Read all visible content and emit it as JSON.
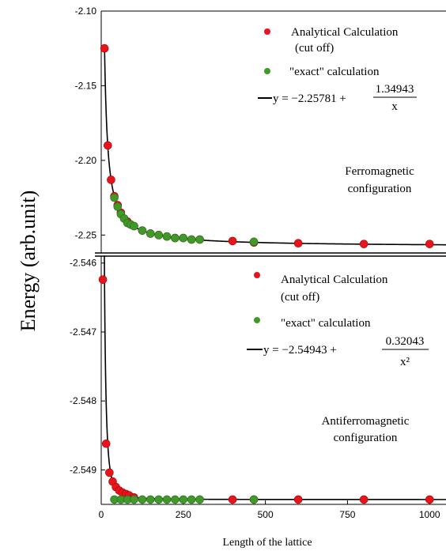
{
  "y_label": "Energy (arb.unit)",
  "x_label": "Length of the lattice",
  "colors": {
    "analytical": "#e8141c",
    "exact": "#3f9a2a",
    "fit": "#000000"
  },
  "chart_data": [
    {
      "type": "scatter",
      "panel": "top",
      "xlim": [
        0,
        1050
      ],
      "ylim": [
        -2.262,
        -2.1
      ],
      "y_ticks": [
        "-2.10",
        "-2.15",
        "-2.20",
        "-2.25"
      ],
      "y_tick_values": [
        -2.1,
        -2.15,
        -2.2,
        -2.25
      ],
      "legend": {
        "analytical_line1": "Analytical Calculation",
        "analytical_line2": "(cut off)",
        "exact": "\"exact\" calculation",
        "fit_lhs": "y = −2.25781 +",
        "fit_num": "1.34943",
        "fit_den": "x"
      },
      "note_line1": "Ferromagnetic",
      "note_line2": "configuration",
      "fit": {
        "a": -2.25781,
        "b": 1.34943,
        "power": 1,
        "x_from": 10,
        "x_to": 1050
      },
      "series": [
        {
          "name": "Analytical Calculation (cut off)",
          "points": [
            [
              10,
              -2.125
            ],
            [
              20,
              -2.19
            ],
            [
              30,
              -2.213
            ],
            [
              40,
              -2.224
            ],
            [
              50,
              -2.23
            ],
            [
              60,
              -2.235
            ],
            [
              70,
              -2.239
            ],
            [
              80,
              -2.241
            ],
            [
              90,
              -2.243
            ],
            [
              100,
              -2.244
            ],
            [
              125,
              -2.247
            ],
            [
              150,
              -2.249
            ],
            [
              175,
              -2.25
            ],
            [
              200,
              -2.251
            ],
            [
              225,
              -2.252
            ],
            [
              250,
              -2.252
            ],
            [
              275,
              -2.253
            ],
            [
              300,
              -2.253
            ],
            [
              400,
              -2.254
            ],
            [
              465,
              -2.255
            ],
            [
              600,
              -2.2555
            ],
            [
              800,
              -2.256
            ],
            [
              1000,
              -2.256
            ]
          ]
        },
        {
          "name": "\"exact\" calculation",
          "points": [
            [
              40,
              -2.225
            ],
            [
              50,
              -2.231
            ],
            [
              60,
              -2.236
            ],
            [
              70,
              -2.239
            ],
            [
              80,
              -2.242
            ],
            [
              90,
              -2.243
            ],
            [
              100,
              -2.244
            ],
            [
              125,
              -2.247
            ],
            [
              150,
              -2.249
            ],
            [
              175,
              -2.25
            ],
            [
              200,
              -2.251
            ],
            [
              225,
              -2.252
            ],
            [
              250,
              -2.252
            ],
            [
              275,
              -2.253
            ],
            [
              300,
              -2.253
            ],
            [
              465,
              -2.2545
            ]
          ]
        }
      ]
    },
    {
      "type": "scatter",
      "panel": "bottom",
      "xlim": [
        0,
        1050
      ],
      "ylim": [
        -2.5495,
        -2.5459
      ],
      "y_ticks": [
        "-2.546",
        "-2.547",
        "-2.548",
        "-2.549"
      ],
      "y_tick_values": [
        -2.546,
        -2.547,
        -2.548,
        -2.549
      ],
      "x_ticks": [
        "0",
        "250",
        "500",
        "750",
        "1000"
      ],
      "x_tick_values": [
        0,
        250,
        500,
        750,
        1000
      ],
      "legend": {
        "analytical_line1": "Analytical Calculation",
        "analytical_line2": "(cut off)",
        "exact": "\"exact\" calculation",
        "fit_lhs": "y = −2.54943  +",
        "fit_num": "0.32043",
        "fit_den": "x²"
      },
      "note_line1": "Antiferromagnetic",
      "note_line2": "configuration",
      "fit": {
        "a": -2.54943,
        "b": 0.32043,
        "power": 2,
        "x_from": 8,
        "x_to": 1050
      },
      "series": [
        {
          "name": "Analytical Calculation (cut off)",
          "points": [
            [
              5,
              -2.54624
            ],
            [
              15,
              -2.54862
            ],
            [
              25,
              -2.54904
            ],
            [
              35,
              -2.54917
            ],
            [
              45,
              -2.54925
            ],
            [
              55,
              -2.5493
            ],
            [
              65,
              -2.54933
            ],
            [
              75,
              -2.54935
            ],
            [
              85,
              -2.54937
            ],
            [
              100,
              -2.5494
            ],
            [
              400,
              -2.54943
            ],
            [
              465,
              -2.54943
            ],
            [
              600,
              -2.54943
            ],
            [
              800,
              -2.54943
            ],
            [
              1000,
              -2.54943
            ]
          ]
        },
        {
          "name": "\"exact\" calculation",
          "points": [
            [
              40,
              -2.54943
            ],
            [
              60,
              -2.54943
            ],
            [
              80,
              -2.54943
            ],
            [
              100,
              -2.54943
            ],
            [
              125,
              -2.54943
            ],
            [
              150,
              -2.54943
            ],
            [
              175,
              -2.54943
            ],
            [
              200,
              -2.54943
            ],
            [
              225,
              -2.54943
            ],
            [
              250,
              -2.54943
            ],
            [
              275,
              -2.54943
            ],
            [
              300,
              -2.54943
            ],
            [
              465,
              -2.54943
            ]
          ]
        }
      ]
    }
  ]
}
